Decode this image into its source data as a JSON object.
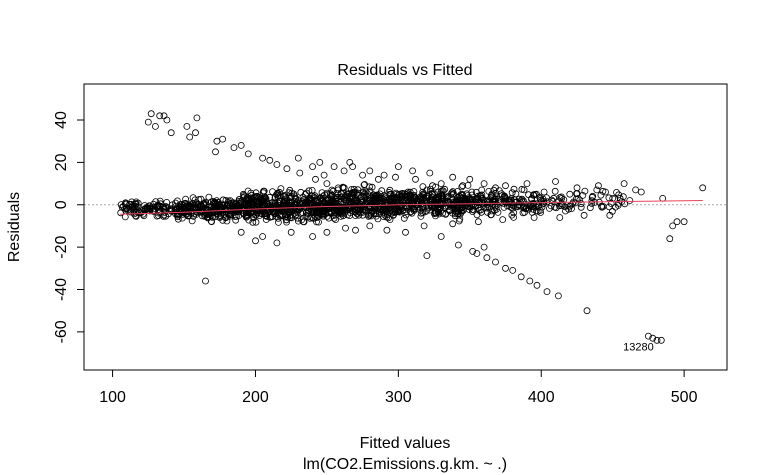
{
  "chart_data": {
    "type": "scatter",
    "title": "Residuals vs Fitted",
    "xlabel": "Fitted values",
    "subtitle": "lm(CO2.Emissions.g.km. ~ .)",
    "ylabel": "Residuals",
    "xlim": [
      80,
      530
    ],
    "ylim": [
      -78,
      57
    ],
    "x_ticks": [
      100,
      200,
      300,
      400,
      500
    ],
    "y_ticks": [
      40,
      20,
      0,
      -20,
      -40,
      -60
    ],
    "zero_line": 0,
    "marker": "open-circle",
    "colors": {
      "points": "#000000",
      "smooth": "#e8435a",
      "zero_line": "#aaaaaa"
    },
    "point_labels": [
      {
        "text": "13280",
        "x": 468,
        "y": -67
      }
    ],
    "smooth_line": [
      [
        105,
        -4.5
      ],
      [
        150,
        -3.5
      ],
      [
        200,
        -2.0
      ],
      [
        250,
        -0.8
      ],
      [
        300,
        0.0
      ],
      [
        350,
        0.5
      ],
      [
        400,
        1.0
      ],
      [
        450,
        1.5
      ],
      [
        513,
        2.0
      ]
    ],
    "clusters": [
      {
        "xmin": 105,
        "xmax": 145,
        "ymin": -7,
        "ymax": 3,
        "n": 110
      },
      {
        "xmin": 145,
        "xmax": 190,
        "ymin": -9,
        "ymax": 5,
        "n": 260
      },
      {
        "xmin": 190,
        "xmax": 250,
        "ymin": -11,
        "ymax": 9,
        "n": 420
      },
      {
        "xmin": 250,
        "xmax": 300,
        "ymin": -10,
        "ymax": 11,
        "n": 380
      },
      {
        "xmin": 300,
        "xmax": 350,
        "ymin": -9,
        "ymax": 11,
        "n": 300
      },
      {
        "xmin": 350,
        "xmax": 400,
        "ymin": -7,
        "ymax": 9,
        "n": 170
      },
      {
        "xmin": 400,
        "xmax": 460,
        "ymin": -5,
        "ymax": 9,
        "n": 70
      }
    ],
    "points": [
      [
        125,
        39
      ],
      [
        127,
        43
      ],
      [
        130,
        37
      ],
      [
        133,
        42
      ],
      [
        136,
        42
      ],
      [
        138,
        40
      ],
      [
        141,
        34
      ],
      [
        152,
        37
      ],
      [
        154,
        32
      ],
      [
        158,
        34
      ],
      [
        159,
        41
      ],
      [
        173,
        30
      ],
      [
        177,
        31
      ],
      [
        172,
        25
      ],
      [
        185,
        27
      ],
      [
        190,
        28
      ],
      [
        195,
        24
      ],
      [
        205,
        22
      ],
      [
        210,
        21
      ],
      [
        215,
        19
      ],
      [
        222,
        17
      ],
      [
        231,
        15
      ],
      [
        242,
        12
      ],
      [
        250,
        10
      ],
      [
        258,
        7
      ],
      [
        230,
        22
      ],
      [
        240,
        18
      ],
      [
        248,
        14
      ],
      [
        264,
        5
      ],
      [
        165,
        -36
      ],
      [
        190,
        -13
      ],
      [
        205,
        -15
      ],
      [
        240,
        -15
      ],
      [
        270,
        -12
      ],
      [
        305,
        -13
      ],
      [
        330,
        -15
      ],
      [
        342,
        -19
      ],
      [
        352,
        -22
      ],
      [
        362,
        -25
      ],
      [
        368,
        -27
      ],
      [
        375,
        -30
      ],
      [
        386,
        -34
      ],
      [
        397,
        -38
      ],
      [
        404,
        -41
      ],
      [
        412,
        -43
      ],
      [
        432,
        -50
      ],
      [
        475,
        -62
      ],
      [
        478,
        -63
      ],
      [
        481,
        -64
      ],
      [
        484,
        -64
      ],
      [
        360,
        -20
      ],
      [
        380,
        -31
      ],
      [
        392,
        -36
      ],
      [
        355,
        -23
      ],
      [
        320,
        -24
      ],
      [
        266,
        20
      ],
      [
        268,
        18
      ],
      [
        280,
        16
      ],
      [
        290,
        14
      ],
      [
        300,
        18
      ],
      [
        310,
        16
      ],
      [
        322,
        15
      ],
      [
        338,
        13
      ],
      [
        350,
        12
      ],
      [
        360,
        10
      ],
      [
        375,
        9
      ],
      [
        390,
        10
      ],
      [
        410,
        11
      ],
      [
        425,
        8
      ],
      [
        440,
        9
      ],
      [
        445,
        6
      ],
      [
        470,
        6
      ],
      [
        485,
        3
      ],
      [
        500,
        -8
      ],
      [
        490,
        -16
      ],
      [
        495,
        -8
      ],
      [
        492,
        -10
      ],
      [
        513,
        8
      ],
      [
        458,
        10
      ],
      [
        466,
        7
      ],
      [
        245,
        20
      ],
      [
        255,
        18
      ],
      [
        262,
        16
      ],
      [
        275,
        14
      ],
      [
        286,
        12
      ],
      [
        298,
        13
      ],
      [
        312,
        12
      ],
      [
        330,
        10
      ],
      [
        345,
        9
      ],
      [
        368,
        8
      ],
      [
        388,
        7
      ],
      [
        402,
        6
      ],
      [
        420,
        5
      ],
      [
        436,
        4
      ],
      [
        450,
        3
      ],
      [
        462,
        2
      ],
      [
        200,
        -17
      ],
      [
        215,
        -18
      ],
      [
        225,
        -13
      ],
      [
        250,
        -13
      ],
      [
        263,
        -11
      ],
      [
        280,
        -10
      ],
      [
        292,
        -12
      ],
      [
        318,
        -10
      ],
      [
        338,
        -9
      ],
      [
        356,
        -8
      ],
      [
        373,
        -7
      ],
      [
        395,
        -6
      ],
      [
        413,
        -6
      ],
      [
        430,
        -5
      ],
      [
        448,
        -5
      ]
    ]
  }
}
